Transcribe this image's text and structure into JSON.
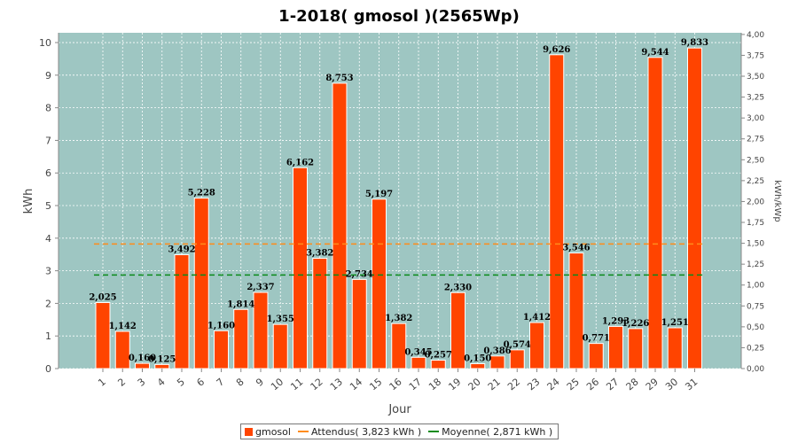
{
  "chart_data": {
    "type": "bar",
    "title": "1-2018( gmosol )(2565Wp)",
    "xlabel": "Jour",
    "ylabel": "kWh",
    "y2label": "kWh/kWp",
    "ylim": [
      0,
      10.3
    ],
    "yticks": [
      0,
      1,
      2,
      3,
      4,
      5,
      6,
      7,
      8,
      9,
      10
    ],
    "y2lim": [
      0,
      4.02
    ],
    "y2ticks": [
      "0,00",
      "0,25",
      "0,50",
      "0,75",
      "1,00",
      "1,25",
      "1,50",
      "1,75",
      "2,00",
      "2,25",
      "2,50",
      "2,75",
      "3,00",
      "3,25",
      "3,50",
      "3,75",
      "4,00"
    ],
    "grid": true,
    "legend_position": "bottom",
    "categories": [
      "1",
      "2",
      "3",
      "4",
      "5",
      "6",
      "7",
      "8",
      "9",
      "10",
      "11",
      "12",
      "13",
      "14",
      "15",
      "16",
      "17",
      "18",
      "19",
      "20",
      "21",
      "22",
      "23",
      "24",
      "25",
      "26",
      "27",
      "28",
      "29",
      "30",
      "31"
    ],
    "series": [
      {
        "name": "gmosol",
        "color": "#ff4400",
        "values": [
          2.025,
          1.142,
          0.16,
          0.125,
          3.492,
          5.228,
          1.16,
          1.814,
          2.337,
          1.355,
          6.162,
          3.382,
          8.753,
          2.734,
          5.197,
          1.382,
          0.345,
          0.257,
          2.33,
          0.15,
          0.386,
          0.574,
          1.412,
          9.626,
          3.546,
          0.771,
          1.293,
          1.226,
          9.544,
          1.251,
          9.833
        ],
        "labels": [
          "2,025",
          "1,142",
          "0,160",
          "0,125",
          "3,492",
          "5,228",
          "1,160",
          "1,814",
          "2,337",
          "1,355",
          "6,162",
          "3,382",
          "8,753",
          "2,734",
          "5,197",
          "1,382",
          "0,345",
          "0,257",
          "2,330",
          "0,150",
          "0,386",
          "0,574",
          "1,412",
          "9,626",
          "3,546",
          "0,771",
          "1,293",
          "1,226",
          "9,544",
          "1,251",
          "9,833"
        ]
      }
    ],
    "reference_lines": [
      {
        "name": "Attendus( 3,823 kWh )",
        "value": 3.823,
        "color": "#ff8c1a"
      },
      {
        "name": "Moyenne( 2,871 kWh )",
        "value": 2.871,
        "color": "#0a8a1a"
      }
    ],
    "colors": {
      "plot_bg": "#9ec6c2",
      "grid": "#ffffff"
    }
  }
}
